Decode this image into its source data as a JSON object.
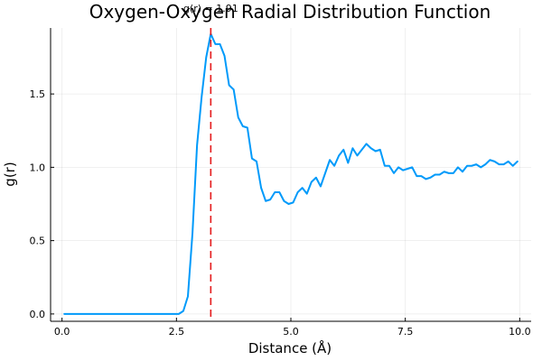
{
  "chart_data": {
    "type": "line",
    "title": "Oxygen-Oxygen Radial Distribution Function",
    "xlabel": "Distance (Å)",
    "ylabel": "g(r)",
    "xlim": [
      -0.25,
      10.25
    ],
    "ylim": [
      -0.05,
      1.95
    ],
    "grid": true,
    "legend": "none",
    "x_ticks": [
      0,
      2.5,
      5,
      7.5,
      10
    ],
    "x_tick_labels": [
      "0.0",
      "2.5",
      "5.0",
      "7.5",
      "10.0"
    ],
    "y_ticks": [
      0,
      0.5,
      1,
      1.5
    ],
    "y_tick_labels": [
      "0.0",
      "0.5",
      "1.0",
      "1.5"
    ],
    "series": [
      {
        "color": "#009AFA",
        "x": [
          0.05,
          0.15,
          0.25,
          0.35,
          0.45,
          0.55,
          0.65,
          0.75,
          0.85,
          0.95,
          1.05,
          1.15,
          1.25,
          1.35,
          1.45,
          1.55,
          1.65,
          1.75,
          1.85,
          1.95,
          2.05,
          2.15,
          2.25,
          2.35,
          2.45,
          2.55,
          2.65,
          2.75,
          2.85,
          2.95,
          3.05,
          3.15,
          3.25,
          3.35,
          3.45,
          3.55,
          3.65,
          3.75,
          3.85,
          3.95,
          4.05,
          4.15,
          4.25,
          4.35,
          4.45,
          4.55,
          4.65,
          4.75,
          4.85,
          4.95,
          5.05,
          5.15,
          5.25,
          5.35,
          5.45,
          5.55,
          5.65,
          5.75,
          5.85,
          5.95,
          6.05,
          6.15,
          6.25,
          6.35,
          6.45,
          6.55,
          6.65,
          6.75,
          6.85,
          6.95,
          7.05,
          7.15,
          7.25,
          7.35,
          7.45,
          7.55,
          7.65,
          7.75,
          7.85,
          7.95,
          8.05,
          8.15,
          8.25,
          8.35,
          8.45,
          8.55,
          8.65,
          8.75,
          8.85,
          8.95,
          9.05,
          9.15,
          9.25,
          9.35,
          9.45,
          9.55,
          9.65,
          9.75,
          9.85,
          9.95
        ],
        "y": [
          0,
          0,
          0,
          0,
          0,
          0,
          0,
          0,
          0,
          0,
          0,
          0,
          0,
          0,
          0,
          0,
          0,
          0,
          0,
          0,
          0,
          0,
          0,
          0,
          0,
          0,
          0.02,
          0.12,
          0.55,
          1.15,
          1.48,
          1.75,
          1.91,
          1.84,
          1.84,
          1.76,
          1.56,
          1.53,
          1.34,
          1.28,
          1.27,
          1.06,
          1.04,
          0.86,
          0.77,
          0.78,
          0.83,
          0.83,
          0.77,
          0.75,
          0.76,
          0.83,
          0.86,
          0.82,
          0.9,
          0.93,
          0.87,
          0.96,
          1.05,
          1.01,
          1.08,
          1.12,
          1.03,
          1.13,
          1.08,
          1.12,
          1.16,
          1.13,
          1.11,
          1.12,
          1.01,
          1.01,
          0.96,
          1,
          0.98,
          0.99,
          1,
          0.94,
          0.94,
          0.92,
          0.93,
          0.95,
          0.95,
          0.97,
          0.96,
          0.96,
          1,
          0.97,
          1.01,
          1.01,
          1.02,
          1,
          1.02,
          1.05,
          1.04,
          1.02,
          1.02,
          1.04,
          1.01,
          1.04
        ]
      }
    ],
    "annotations": [
      {
        "type": "vline",
        "x": 3.25,
        "color": "#E41A1C",
        "style": "dashed"
      },
      {
        "type": "text",
        "x": 3.25,
        "y": 1.91,
        "text": "g(r) = 1.91"
      }
    ]
  }
}
